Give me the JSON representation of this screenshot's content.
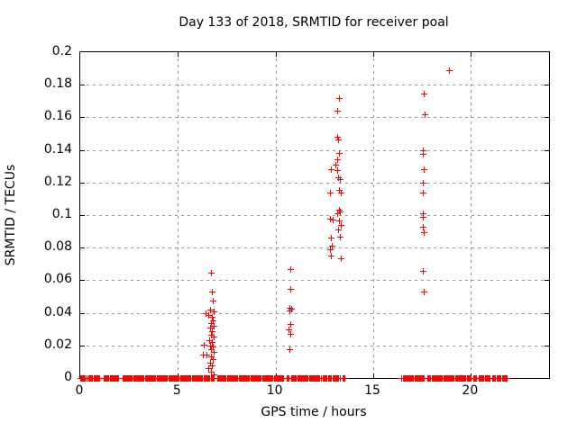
{
  "chart_data": {
    "type": "scatter",
    "title": "Day 133 of 2018, SRMTID for receiver poal",
    "xlabel": "GPS time / hours",
    "ylabel": "SRMTID / TECUs",
    "xlim": [
      0,
      24
    ],
    "ylim": [
      0,
      0.2
    ],
    "grid": true,
    "legend": "none",
    "marker": "plus",
    "marker_color": "#ff0000",
    "grid_color": "#999999",
    "border_color": "#000000",
    "xticks": [
      {
        "v": 0,
        "label": "0"
      },
      {
        "v": 5,
        "label": "5"
      },
      {
        "v": 10,
        "label": "10"
      },
      {
        "v": 15,
        "label": "15"
      },
      {
        "v": 20,
        "label": "20"
      }
    ],
    "yticks": [
      {
        "v": 0,
        "label": "0"
      },
      {
        "v": 0.02,
        "label": "0.02"
      },
      {
        "v": 0.04,
        "label": "0.04"
      },
      {
        "v": 0.06,
        "label": "0.06"
      },
      {
        "v": 0.08,
        "label": "0.08"
      },
      {
        "v": 0.1,
        "label": "0.1"
      },
      {
        "v": 0.12,
        "label": "0.12"
      },
      {
        "v": 0.14,
        "label": "0.14"
      },
      {
        "v": 0.16,
        "label": "0.16"
      },
      {
        "v": 0.18,
        "label": "0.18"
      },
      {
        "v": 0.2,
        "label": "0.2"
      }
    ],
    "series": [
      {
        "name": "SRMTID",
        "points": [
          [
            6.7,
            0.0646
          ],
          [
            6.74,
            0.053
          ],
          [
            6.79,
            0.0475
          ],
          [
            6.64,
            0.042
          ],
          [
            6.81,
            0.041
          ],
          [
            6.42,
            0.0397
          ],
          [
            6.55,
            0.0387
          ],
          [
            6.76,
            0.0376
          ],
          [
            6.78,
            0.0354
          ],
          [
            6.7,
            0.0337
          ],
          [
            6.83,
            0.032
          ],
          [
            6.64,
            0.031
          ],
          [
            6.76,
            0.0287
          ],
          [
            6.7,
            0.0265
          ],
          [
            6.83,
            0.0254
          ],
          [
            6.6,
            0.0232
          ],
          [
            6.74,
            0.0221
          ],
          [
            6.32,
            0.0204
          ],
          [
            6.64,
            0.0199
          ],
          [
            6.78,
            0.0193
          ],
          [
            6.7,
            0.0177
          ],
          [
            6.83,
            0.016
          ],
          [
            6.46,
            0.0144
          ],
          [
            6.28,
            0.0144
          ],
          [
            6.7,
            0.0133
          ],
          [
            6.78,
            0.0116
          ],
          [
            6.64,
            0.0094
          ],
          [
            6.74,
            0.0077
          ],
          [
            6.55,
            0.0061
          ],
          [
            6.7,
            0.0039
          ],
          [
            6.83,
            0.0022
          ],
          [
            10.75,
            0.067
          ],
          [
            10.75,
            0.0545
          ],
          [
            10.7,
            0.0432
          ],
          [
            10.78,
            0.0428
          ],
          [
            10.73,
            0.0412
          ],
          [
            10.75,
            0.033
          ],
          [
            10.68,
            0.03
          ],
          [
            10.75,
            0.027
          ],
          [
            10.73,
            0.0177
          ],
          [
            13.24,
            0.172
          ],
          [
            13.15,
            0.164
          ],
          [
            13.17,
            0.148
          ],
          [
            13.22,
            0.1465
          ],
          [
            13.24,
            0.138
          ],
          [
            13.15,
            0.134
          ],
          [
            13.06,
            0.131
          ],
          [
            12.83,
            0.128
          ],
          [
            13.15,
            0.1275
          ],
          [
            13.2,
            0.123
          ],
          [
            13.29,
            0.122
          ],
          [
            13.33,
            0.114
          ],
          [
            13.24,
            0.1155
          ],
          [
            12.78,
            0.114
          ],
          [
            13.26,
            0.1035
          ],
          [
            13.29,
            0.102
          ],
          [
            13.17,
            0.101
          ],
          [
            12.78,
            0.098
          ],
          [
            12.92,
            0.097
          ],
          [
            13.24,
            0.0965
          ],
          [
            13.33,
            0.094
          ],
          [
            13.2,
            0.091
          ],
          [
            13.29,
            0.087
          ],
          [
            12.83,
            0.086
          ],
          [
            12.87,
            0.081
          ],
          [
            12.78,
            0.079
          ],
          [
            12.83,
            0.075
          ],
          [
            13.33,
            0.0735
          ],
          [
            17.58,
            0.1745
          ],
          [
            17.63,
            0.162
          ],
          [
            17.53,
            0.14
          ],
          [
            17.56,
            0.1375
          ],
          [
            17.58,
            0.128
          ],
          [
            17.53,
            0.12
          ],
          [
            17.53,
            0.114
          ],
          [
            17.53,
            0.101
          ],
          [
            17.53,
            0.099
          ],
          [
            17.53,
            0.093
          ],
          [
            17.58,
            0.0895
          ],
          [
            17.53,
            0.0657
          ],
          [
            17.58,
            0.053
          ],
          [
            18.87,
            0.189
          ]
        ]
      }
    ],
    "baseline_value": 0,
    "baseline_step": 0.05,
    "baseline_segments": [
      [
        0.0,
        0.3
      ],
      [
        0.42,
        1.0
      ],
      [
        1.2,
        1.98
      ],
      [
        2.15,
        6.45
      ],
      [
        6.52,
        6.62
      ],
      [
        6.7,
        6.88
      ],
      [
        7.0,
        10.42
      ],
      [
        10.55,
        10.65
      ],
      [
        10.8,
        12.3
      ],
      [
        12.42,
        12.82
      ],
      [
        12.92,
        13.3
      ],
      [
        13.42,
        13.52
      ],
      [
        16.45,
        17.6
      ],
      [
        17.78,
        19.98
      ],
      [
        20.1,
        20.28
      ],
      [
        20.4,
        20.95
      ],
      [
        21.1,
        21.5
      ],
      [
        21.6,
        21.85
      ]
    ]
  }
}
